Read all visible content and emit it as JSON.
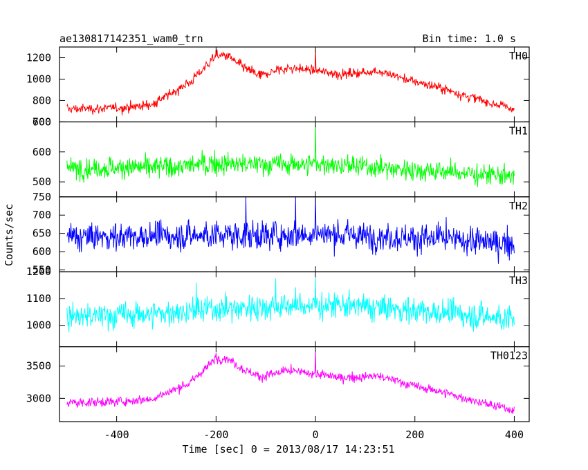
{
  "header": {
    "title": "ae130817142351_wam0_trn",
    "bin_time": "Bin time: 1.0 s"
  },
  "axes": {
    "xlabel": "Time [sec] 0 = 2013/08/17 14:23:51",
    "ylabel": "Counts/sec",
    "xlim": [
      -515,
      430
    ],
    "xticks": [
      -400,
      -200,
      0,
      200,
      400
    ]
  },
  "chart_data": {
    "type": "line",
    "title": "ae130817142351_wam0_trn",
    "xlabel": "Time [sec] 0 = 2013/08/17 14:23:51",
    "ylabel": "Counts/sec",
    "x_range": [
      -500,
      400
    ],
    "bin_time_s": 1.0,
    "series": [
      {
        "name": "TH0",
        "color": "#ff0000",
        "ylim": [
          600,
          1300
        ],
        "yticks": [
          600,
          800,
          1000,
          1200
        ],
        "noise": 35,
        "envelope": [
          [
            -500,
            720
          ],
          [
            -400,
            730
          ],
          [
            -330,
            760
          ],
          [
            -300,
            840
          ],
          [
            -250,
            980
          ],
          [
            -200,
            1220
          ],
          [
            -175,
            1215
          ],
          [
            -150,
            1120
          ],
          [
            -110,
            1030
          ],
          [
            -80,
            1080
          ],
          [
            -50,
            1105
          ],
          [
            0,
            1080
          ],
          [
            50,
            1045
          ],
          [
            100,
            1060
          ],
          [
            120,
            1080
          ],
          [
            160,
            1030
          ],
          [
            200,
            975
          ],
          [
            250,
            920
          ],
          [
            300,
            850
          ],
          [
            350,
            780
          ],
          [
            400,
            720
          ]
        ],
        "spikes": [
          [
            0,
            1290
          ],
          [
            -200,
            1270
          ],
          [
            -150,
            1180
          ]
        ]
      },
      {
        "name": "TH1",
        "color": "#00ff00",
        "ylim": [
          450,
          700
        ],
        "yticks": [
          500,
          600,
          700
        ],
        "noise": 28,
        "envelope": [
          [
            -500,
            545
          ],
          [
            -300,
            550
          ],
          [
            -200,
            560
          ],
          [
            -100,
            558
          ],
          [
            0,
            560
          ],
          [
            100,
            550
          ],
          [
            200,
            540
          ],
          [
            300,
            530
          ],
          [
            400,
            515
          ]
        ],
        "spikes": [
          [
            0,
            705
          ]
        ]
      },
      {
        "name": "TH2",
        "color": "#0000ff",
        "ylim": [
          545,
          750
        ],
        "yticks": [
          550,
          600,
          650,
          700,
          750
        ],
        "noise": 30,
        "envelope": [
          [
            -500,
            640
          ],
          [
            -300,
            642
          ],
          [
            -200,
            645
          ],
          [
            -100,
            645
          ],
          [
            0,
            650
          ],
          [
            100,
            642
          ],
          [
            200,
            638
          ],
          [
            300,
            630
          ],
          [
            400,
            622
          ]
        ],
        "spikes": [
          [
            0,
            755
          ],
          [
            -140,
            752
          ],
          [
            -40,
            750
          ]
        ]
      },
      {
        "name": "TH3",
        "color": "#00ffff",
        "ylim": [
          920,
          1200
        ],
        "yticks": [
          1000,
          1100,
          1200
        ],
        "noise": 40,
        "envelope": [
          [
            -500,
            1030
          ],
          [
            -300,
            1045
          ],
          [
            -200,
            1060
          ],
          [
            -100,
            1070
          ],
          [
            0,
            1075
          ],
          [
            100,
            1068
          ],
          [
            200,
            1055
          ],
          [
            300,
            1040
          ],
          [
            400,
            1020
          ]
        ],
        "spikes": [
          [
            0,
            1180
          ],
          [
            -240,
            1160
          ],
          [
            -80,
            1175
          ]
        ]
      },
      {
        "name": "TH0123",
        "color": "#ff00ff",
        "ylim": [
          2640,
          3800
        ],
        "yticks": [
          3000,
          3500
        ],
        "noise": 55,
        "envelope": [
          [
            -500,
            2930
          ],
          [
            -400,
            2950
          ],
          [
            -330,
            2990
          ],
          [
            -300,
            3080
          ],
          [
            -250,
            3250
          ],
          [
            -200,
            3620
          ],
          [
            -175,
            3610
          ],
          [
            -150,
            3470
          ],
          [
            -110,
            3330
          ],
          [
            -80,
            3390
          ],
          [
            -50,
            3420
          ],
          [
            0,
            3380
          ],
          [
            50,
            3320
          ],
          [
            100,
            3330
          ],
          [
            120,
            3350
          ],
          [
            160,
            3280
          ],
          [
            200,
            3190
          ],
          [
            250,
            3110
          ],
          [
            300,
            3000
          ],
          [
            350,
            2900
          ],
          [
            400,
            2820
          ]
        ],
        "spikes": [
          [
            0,
            3760
          ],
          [
            -200,
            3700
          ]
        ]
      }
    ]
  }
}
